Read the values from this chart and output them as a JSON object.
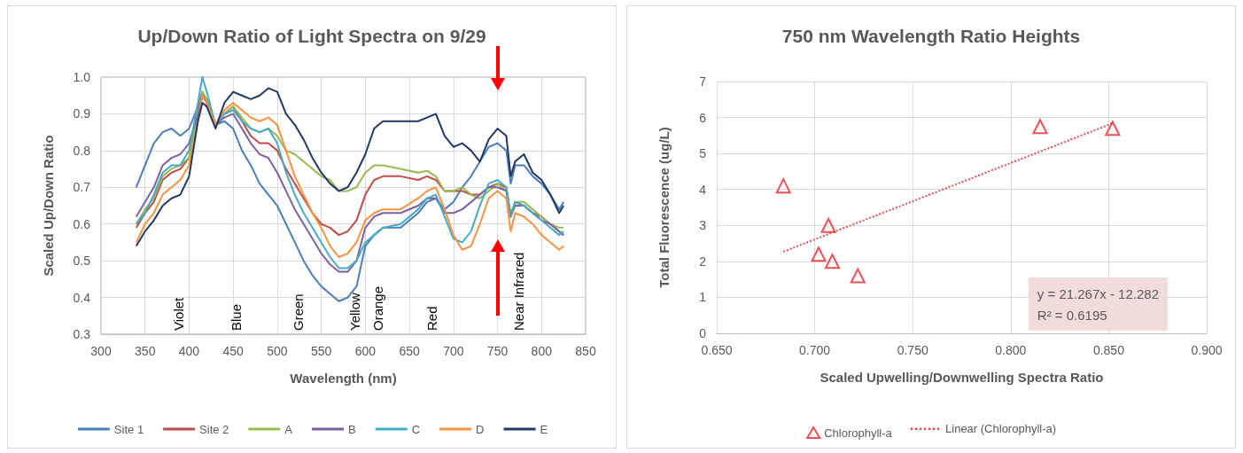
{
  "chart_data": [
    {
      "type": "line",
      "title": "Up/Down Ratio of Light Spectra on 9/29",
      "xlabel": "Wavelength (nm)",
      "ylabel": "Scaled Up/Down Ratio",
      "x": [
        340,
        350,
        360,
        370,
        380,
        390,
        400,
        410,
        415,
        420,
        430,
        440,
        450,
        460,
        470,
        480,
        490,
        500,
        510,
        520,
        530,
        540,
        550,
        560,
        570,
        580,
        590,
        600,
        610,
        620,
        640,
        660,
        670,
        680,
        690,
        700,
        710,
        720,
        730,
        740,
        750,
        760,
        765,
        770,
        780,
        790,
        800,
        810,
        820,
        825
      ],
      "series": [
        {
          "name": "Site 1",
          "color": "#4a7ebb",
          "values": [
            0.7,
            0.76,
            0.82,
            0.85,
            0.86,
            0.84,
            0.86,
            0.92,
            0.96,
            0.93,
            0.87,
            0.88,
            0.86,
            0.8,
            0.76,
            0.71,
            0.68,
            0.65,
            0.6,
            0.55,
            0.5,
            0.46,
            0.43,
            0.41,
            0.39,
            0.4,
            0.43,
            0.54,
            0.57,
            0.59,
            0.59,
            0.63,
            0.66,
            0.67,
            0.64,
            0.66,
            0.7,
            0.73,
            0.77,
            0.81,
            0.82,
            0.8,
            0.71,
            0.76,
            0.76,
            0.73,
            0.71,
            0.68,
            0.64,
            0.66
          ]
        },
        {
          "name": "Site 2",
          "color": "#be4b48",
          "values": [
            0.59,
            0.63,
            0.66,
            0.72,
            0.74,
            0.75,
            0.78,
            0.9,
            0.95,
            0.94,
            0.87,
            0.9,
            0.92,
            0.88,
            0.84,
            0.82,
            0.82,
            0.8,
            0.75,
            0.71,
            0.67,
            0.63,
            0.6,
            0.59,
            0.57,
            0.58,
            0.61,
            0.68,
            0.72,
            0.73,
            0.73,
            0.72,
            0.73,
            0.72,
            0.69,
            0.69,
            0.69,
            0.68,
            0.68,
            0.7,
            0.71,
            0.7,
            0.62,
            0.66,
            0.65,
            0.63,
            0.62,
            0.6,
            0.58,
            0.57
          ]
        },
        {
          "name": "A",
          "color": "#98b954",
          "values": [
            0.6,
            0.64,
            0.67,
            0.73,
            0.75,
            0.76,
            0.78,
            0.9,
            0.96,
            0.94,
            0.87,
            0.9,
            0.92,
            0.89,
            0.86,
            0.85,
            0.86,
            0.84,
            0.8,
            0.79,
            0.77,
            0.75,
            0.73,
            0.72,
            0.69,
            0.69,
            0.7,
            0.74,
            0.76,
            0.76,
            0.75,
            0.74,
            0.745,
            0.73,
            0.69,
            0.69,
            0.7,
            0.68,
            0.67,
            0.69,
            0.71,
            0.69,
            0.63,
            0.66,
            0.66,
            0.64,
            0.62,
            0.6,
            0.59,
            0.59
          ]
        },
        {
          "name": "B",
          "color": "#7d60a0",
          "values": [
            0.62,
            0.66,
            0.7,
            0.76,
            0.78,
            0.79,
            0.82,
            0.9,
            0.95,
            0.93,
            0.87,
            0.89,
            0.9,
            0.86,
            0.82,
            0.79,
            0.78,
            0.74,
            0.69,
            0.64,
            0.6,
            0.56,
            0.52,
            0.49,
            0.47,
            0.47,
            0.5,
            0.59,
            0.62,
            0.63,
            0.63,
            0.65,
            0.67,
            0.67,
            0.63,
            0.63,
            0.64,
            0.66,
            0.68,
            0.7,
            0.7,
            0.69,
            0.62,
            0.65,
            0.65,
            0.63,
            0.61,
            0.6,
            0.58,
            0.57
          ]
        },
        {
          "name": "C",
          "color": "#46aac5",
          "values": [
            0.6,
            0.63,
            0.68,
            0.74,
            0.76,
            0.76,
            0.8,
            0.93,
            1.0,
            0.96,
            0.87,
            0.9,
            0.91,
            0.88,
            0.86,
            0.85,
            0.86,
            0.82,
            0.74,
            0.68,
            0.63,
            0.59,
            0.55,
            0.51,
            0.48,
            0.48,
            0.5,
            0.55,
            0.57,
            0.59,
            0.6,
            0.64,
            0.67,
            0.68,
            0.62,
            0.56,
            0.55,
            0.58,
            0.65,
            0.71,
            0.72,
            0.7,
            0.62,
            0.66,
            0.65,
            0.63,
            0.61,
            0.59,
            0.57,
            0.58
          ]
        },
        {
          "name": "D",
          "color": "#f69240",
          "values": [
            0.55,
            0.6,
            0.63,
            0.68,
            0.7,
            0.72,
            0.76,
            0.88,
            0.95,
            0.93,
            0.87,
            0.91,
            0.93,
            0.91,
            0.89,
            0.88,
            0.89,
            0.87,
            0.8,
            0.73,
            0.68,
            0.63,
            0.59,
            0.54,
            0.51,
            0.52,
            0.55,
            0.61,
            0.63,
            0.64,
            0.64,
            0.67,
            0.69,
            0.7,
            0.64,
            0.57,
            0.53,
            0.54,
            0.6,
            0.67,
            0.69,
            0.67,
            0.58,
            0.63,
            0.62,
            0.6,
            0.57,
            0.55,
            0.53,
            0.54
          ]
        },
        {
          "name": "E",
          "color": "#1f3864",
          "values": [
            0.54,
            0.58,
            0.61,
            0.65,
            0.67,
            0.68,
            0.73,
            0.88,
            0.93,
            0.92,
            0.86,
            0.93,
            0.96,
            0.95,
            0.94,
            0.95,
            0.97,
            0.96,
            0.9,
            0.87,
            0.83,
            0.78,
            0.74,
            0.71,
            0.69,
            0.7,
            0.74,
            0.79,
            0.86,
            0.88,
            0.88,
            0.88,
            0.89,
            0.9,
            0.84,
            0.81,
            0.82,
            0.8,
            0.77,
            0.83,
            0.86,
            0.84,
            0.73,
            0.77,
            0.79,
            0.74,
            0.72,
            0.68,
            0.63,
            0.65
          ]
        }
      ],
      "xlim": [
        300,
        850
      ],
      "xticks": [
        300,
        350,
        400,
        450,
        500,
        550,
        600,
        650,
        700,
        750,
        800,
        850
      ],
      "ylim": [
        0.3,
        1.0
      ],
      "yticks": [
        {
          "value": 0.3,
          "label": "0.3"
        },
        {
          "value": 0.4,
          "label": "0.4"
        },
        {
          "value": 0.5,
          "label": "0.5"
        },
        {
          "value": 0.6,
          "label": "0.6"
        },
        {
          "value": 0.7,
          "label": "0.7"
        },
        {
          "value": 0.8,
          "label": "0.8"
        },
        {
          "value": 0.9,
          "label": "0.9"
        },
        {
          "value": 1.0,
          "label": "1.0"
        }
      ],
      "grid": true,
      "legend": "bottom",
      "marker": "none",
      "line_style": "solid",
      "annotations": [
        "Violet",
        "Blue",
        "Green",
        "Yellow",
        "Orange",
        "Red",
        "Near Infrared"
      ]
    },
    {
      "type": "scatter",
      "title": "750 nm Wavelength Ratio Heights",
      "xlabel": "Scaled Upwelling/Downwelling Spectra Ratio",
      "ylabel": "Total Fluorescence (ug/L)",
      "series": [
        {
          "name": "Chlorophyll-a",
          "color": "#e8262a",
          "x": [
            0.684,
            0.702,
            0.707,
            0.709,
            0.722,
            0.815,
            0.852
          ],
          "values": [
            4.1,
            2.2,
            3.0,
            2.0,
            1.6,
            5.75,
            5.7
          ]
        },
        {
          "name": "Linear (Chlorophyll-a)",
          "type": "line",
          "marker": "none",
          "color": "#e05050",
          "x": [
            0.684,
            0.852
          ],
          "values": [
            2.27,
            5.84
          ]
        }
      ],
      "xlim": [
        0.65,
        0.9
      ],
      "xticks": [
        {
          "value": 0.65,
          "label": "0.650"
        },
        {
          "value": 0.7,
          "label": "0.700"
        },
        {
          "value": 0.75,
          "label": "0.750"
        },
        {
          "value": 0.8,
          "label": "0.800"
        },
        {
          "value": 0.85,
          "label": "0.850"
        },
        {
          "value": 0.9,
          "label": "0.900"
        }
      ],
      "ylim": [
        0,
        7
      ],
      "yticks": [
        0,
        1,
        2,
        3,
        4,
        5,
        6,
        7
      ],
      "grid": true,
      "legend": "bottom",
      "marker": "triangle",
      "line_style": "dotted",
      "annotations": [
        "y = 21.267x - 12.282",
        "R² = 0.6195"
      ]
    }
  ]
}
